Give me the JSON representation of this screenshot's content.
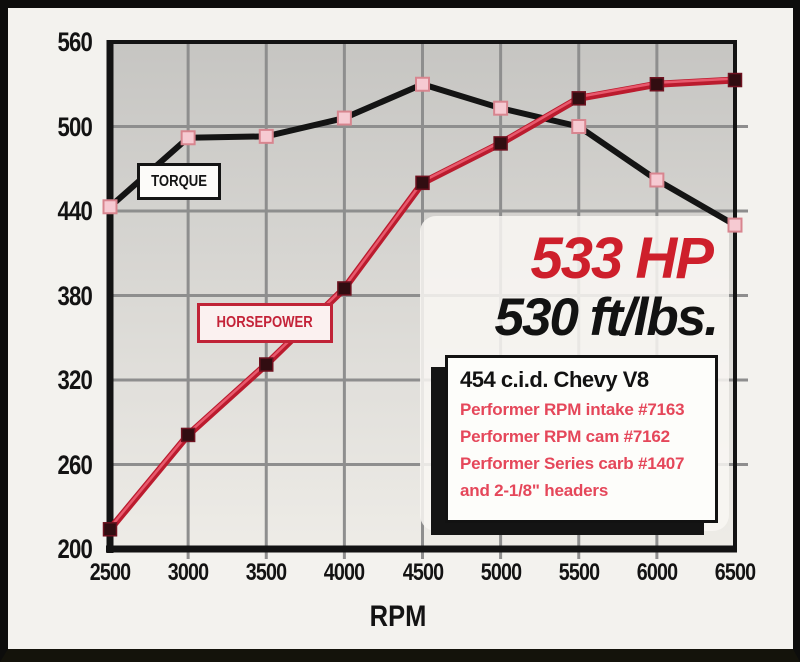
{
  "chart_data": {
    "type": "line",
    "xlabel": "RPM",
    "x": [
      2500,
      3000,
      3500,
      4000,
      4500,
      5000,
      5500,
      6000,
      6500
    ],
    "xticks": [
      2500,
      3000,
      3500,
      4000,
      4500,
      5000,
      5500,
      6000,
      6500
    ],
    "yticks": [
      200,
      260,
      320,
      380,
      440,
      500,
      560
    ],
    "xlim": [
      2500,
      6500
    ],
    "ylim": [
      200,
      560
    ],
    "grid": true,
    "grid_color": "#8e8e8e",
    "axis_color": "#131313",
    "plot_bg_top": "#c6c5c2",
    "plot_bg_bottom": "#eeece7",
    "legend_position": "on-chart-callout-boxes",
    "series": [
      {
        "name": "TORQUE",
        "units": "ft/lbs",
        "line_color": "#141414",
        "marker_fill": "#f6cad2",
        "marker_stroke": "#d8858f",
        "values": [
          443,
          492,
          493,
          506,
          530,
          513,
          500,
          462,
          430
        ]
      },
      {
        "name": "HORSEPOWER",
        "units": "hp",
        "line_color": "#bb1b2e",
        "line_highlight": "#e8596d",
        "marker_fill": "#310d11",
        "marker_stroke": "#6e1220",
        "values": [
          214,
          281,
          331,
          385,
          460,
          488,
          520,
          530,
          533
        ]
      }
    ]
  },
  "callouts": {
    "hp_headline": "533 HP",
    "hp_color": "#ce1f2b",
    "tq_headline": "530 ft/lbs.",
    "tq_color": "#121212",
    "panel_color": "rgba(249,247,243,0.85)"
  },
  "info_box": {
    "title": "454 c.i.d. Chevy V8",
    "accent_color": "#e5475a",
    "lines": [
      "Performer RPM intake #7163",
      "Performer RPM cam #7162",
      "Performer Series carb #1407",
      "and 2-1/8\" headers"
    ]
  }
}
